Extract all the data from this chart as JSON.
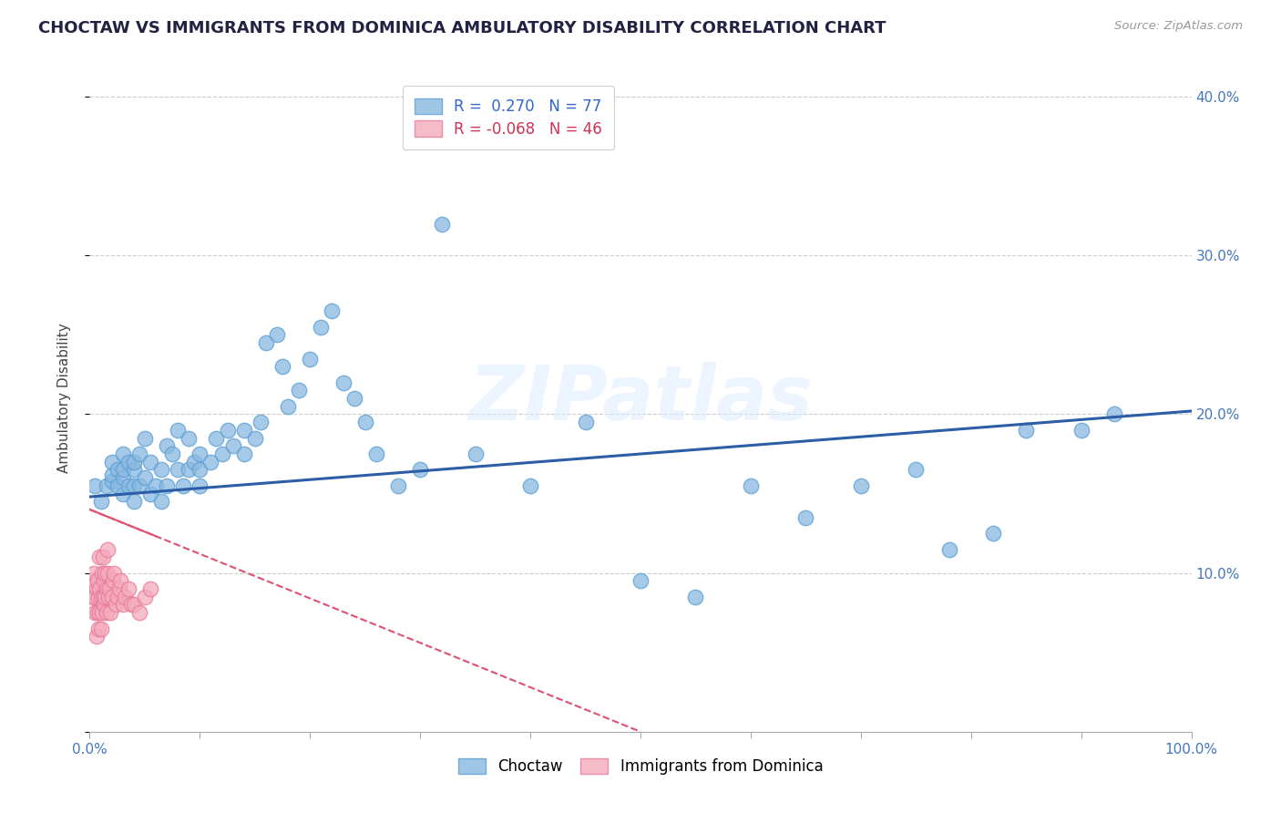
{
  "title": "CHOCTAW VS IMMIGRANTS FROM DOMINICA AMBULATORY DISABILITY CORRELATION CHART",
  "source": "Source: ZipAtlas.com",
  "ylabel": "Ambulatory Disability",
  "xlim": [
    0,
    1.0
  ],
  "ylim": [
    0,
    0.42
  ],
  "xticks": [
    0.0,
    0.1,
    0.2,
    0.3,
    0.4,
    0.5,
    0.6,
    0.7,
    0.8,
    0.9,
    1.0
  ],
  "xticklabels": [
    "0.0%",
    "",
    "",
    "",
    "",
    "",
    "",
    "",
    "",
    "",
    "100.0%"
  ],
  "yticks": [
    0.0,
    0.1,
    0.2,
    0.3,
    0.4
  ],
  "yticklabels_right": [
    "",
    "10.0%",
    "20.0%",
    "30.0%",
    "40.0%"
  ],
  "legend_r1": "R =  0.270",
  "legend_n1": "N = 77",
  "legend_r2": "R = -0.068",
  "legend_n2": "N = 46",
  "blue_color": "#89B8E0",
  "pink_color": "#F4AABC",
  "blue_edge_color": "#5A9FD4",
  "pink_edge_color": "#E87A9A",
  "blue_line_color": "#2B5EA7",
  "pink_line_color": "#E05070",
  "watermark_text": "ZIPatlas",
  "blue_x": [
    0.005,
    0.01,
    0.015,
    0.02,
    0.02,
    0.02,
    0.025,
    0.025,
    0.03,
    0.03,
    0.03,
    0.03,
    0.035,
    0.035,
    0.04,
    0.04,
    0.04,
    0.04,
    0.045,
    0.045,
    0.05,
    0.05,
    0.055,
    0.055,
    0.06,
    0.065,
    0.065,
    0.07,
    0.07,
    0.075,
    0.08,
    0.08,
    0.085,
    0.09,
    0.09,
    0.095,
    0.1,
    0.1,
    0.1,
    0.11,
    0.115,
    0.12,
    0.125,
    0.13,
    0.14,
    0.14,
    0.15,
    0.155,
    0.16,
    0.17,
    0.175,
    0.18,
    0.19,
    0.2,
    0.21,
    0.22,
    0.23,
    0.24,
    0.25,
    0.26,
    0.28,
    0.3,
    0.32,
    0.35,
    0.4,
    0.45,
    0.5,
    0.55,
    0.6,
    0.65,
    0.7,
    0.75,
    0.78,
    0.82,
    0.85,
    0.9,
    0.93
  ],
  "blue_y": [
    0.155,
    0.145,
    0.155,
    0.158,
    0.162,
    0.17,
    0.155,
    0.165,
    0.15,
    0.16,
    0.165,
    0.175,
    0.155,
    0.17,
    0.145,
    0.155,
    0.165,
    0.17,
    0.155,
    0.175,
    0.16,
    0.185,
    0.15,
    0.17,
    0.155,
    0.145,
    0.165,
    0.18,
    0.155,
    0.175,
    0.165,
    0.19,
    0.155,
    0.165,
    0.185,
    0.17,
    0.155,
    0.165,
    0.175,
    0.17,
    0.185,
    0.175,
    0.19,
    0.18,
    0.175,
    0.19,
    0.185,
    0.195,
    0.245,
    0.25,
    0.23,
    0.205,
    0.215,
    0.235,
    0.255,
    0.265,
    0.22,
    0.21,
    0.195,
    0.175,
    0.155,
    0.165,
    0.32,
    0.175,
    0.155,
    0.195,
    0.095,
    0.085,
    0.155,
    0.135,
    0.155,
    0.165,
    0.115,
    0.125,
    0.19,
    0.19,
    0.2
  ],
  "pink_x": [
    0.002,
    0.003,
    0.004,
    0.005,
    0.005,
    0.006,
    0.006,
    0.007,
    0.007,
    0.008,
    0.008,
    0.009,
    0.009,
    0.009,
    0.01,
    0.01,
    0.011,
    0.011,
    0.012,
    0.012,
    0.013,
    0.013,
    0.014,
    0.014,
    0.015,
    0.015,
    0.016,
    0.016,
    0.017,
    0.018,
    0.019,
    0.02,
    0.021,
    0.022,
    0.024,
    0.025,
    0.027,
    0.028,
    0.03,
    0.032,
    0.035,
    0.038,
    0.04,
    0.045,
    0.05,
    0.055
  ],
  "pink_y": [
    0.095,
    0.085,
    0.1,
    0.085,
    0.075,
    0.06,
    0.09,
    0.075,
    0.095,
    0.065,
    0.085,
    0.075,
    0.09,
    0.11,
    0.065,
    0.085,
    0.075,
    0.1,
    0.085,
    0.11,
    0.08,
    0.095,
    0.085,
    0.1,
    0.075,
    0.09,
    0.1,
    0.115,
    0.085,
    0.09,
    0.075,
    0.085,
    0.095,
    0.1,
    0.08,
    0.085,
    0.09,
    0.095,
    0.08,
    0.085,
    0.09,
    0.08,
    0.08,
    0.075,
    0.085,
    0.09
  ],
  "blue_trend_x": [
    0.0,
    1.0
  ],
  "blue_trend_y": [
    0.148,
    0.202
  ],
  "pink_trend_x": [
    0.0,
    0.5
  ],
  "pink_trend_y": [
    0.14,
    0.0
  ],
  "background_color": "#FFFFFF",
  "grid_color": "#CCCCCC",
  "title_color": "#222244",
  "tick_color": "#4477BB"
}
